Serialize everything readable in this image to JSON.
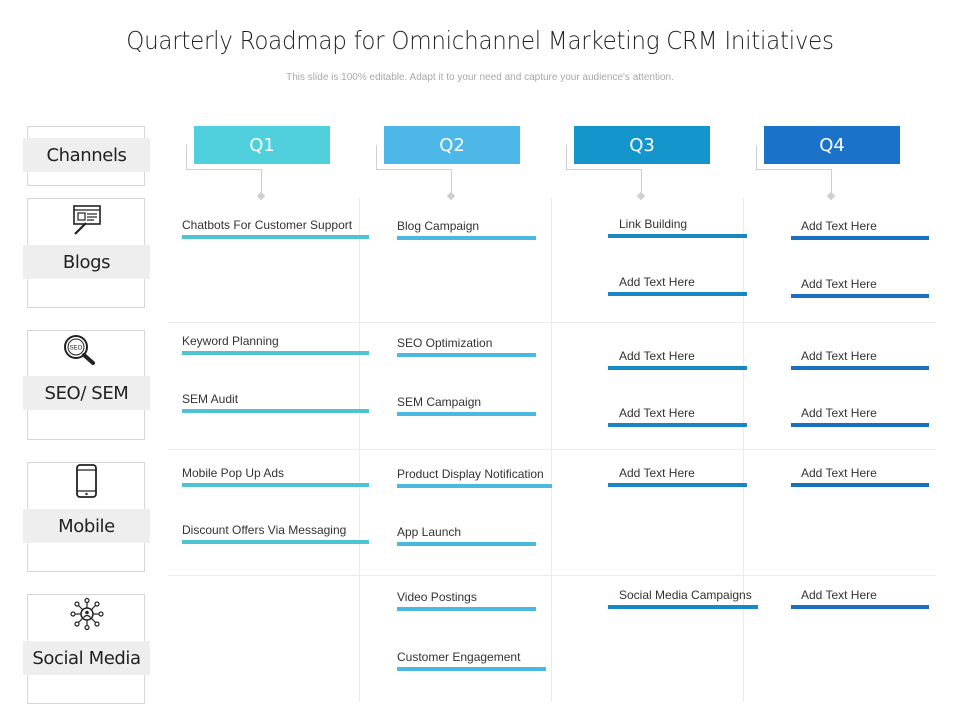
{
  "title": "Quarterly Roadmap for Omnichannel Marketing CRM Initiatives",
  "subtitle": "This slide is 100% editable. Adapt it to your need and capture your audience's attention.",
  "channels_header": "Channels",
  "channels": [
    {
      "label": "Blogs",
      "icon": "blog-document-icon"
    },
    {
      "label": "SEO/ SEM",
      "icon": "seo-search-icon"
    },
    {
      "label": "Mobile",
      "icon": "smartphone-icon"
    },
    {
      "label": "Social Media",
      "icon": "social-network-icon"
    }
  ],
  "quarters": [
    {
      "label": "Q1",
      "color": "#4fd0dc"
    },
    {
      "label": "Q2",
      "color": "#4db8e8"
    },
    {
      "label": "Q3",
      "color": "#1496cc"
    },
    {
      "label": "Q4",
      "color": "#1a73c8"
    }
  ],
  "tasks": {
    "blogs": {
      "q1": [
        "Chatbots For Customer Support"
      ],
      "q2": [
        "Blog Campaign"
      ],
      "q3": [
        "Link Building",
        "Add Text Here"
      ],
      "q4": [
        "Add Text Here",
        "Add Text Here"
      ]
    },
    "seo": {
      "q1": [
        "Keyword Planning",
        "SEM Audit"
      ],
      "q2": [
        "SEO Optimization",
        "SEM Campaign"
      ],
      "q3": [
        "Add Text Here",
        "Add Text Here"
      ],
      "q4": [
        "Add Text Here",
        "Add Text Here"
      ]
    },
    "mobile": {
      "q1": [
        "Mobile Pop Up Ads",
        "Discount Offers Via Messaging"
      ],
      "q2": [
        "Product Display Notification",
        "App Launch"
      ],
      "q3": [
        "Add Text Here"
      ],
      "q4": [
        "Add Text Here"
      ]
    },
    "social": {
      "q2": [
        "Video Postings",
        "Customer Engagement"
      ],
      "q3": [
        "Social Media Campaigns"
      ],
      "q4": [
        "Add Text Here"
      ]
    }
  },
  "bar_colors": {
    "q1": "#4cc4d4",
    "q2": "#4ab8e0",
    "q3": "#1888c4",
    "q4": "#1a6fc0"
  }
}
